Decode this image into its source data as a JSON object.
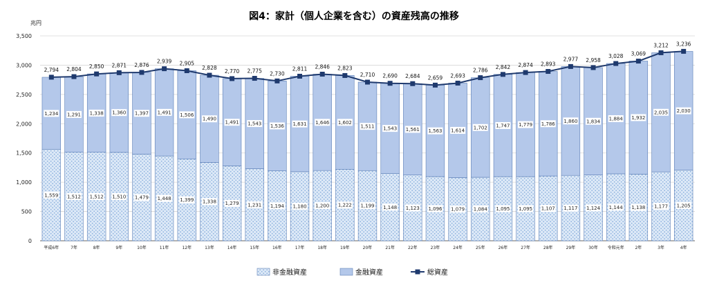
{
  "chart_data": {
    "type": "bar",
    "title": "図4：家計（個人企業を含む）の資産残高の推移",
    "ylabel": "兆円",
    "ylim": [
      0,
      3500
    ],
    "yticks": [
      0,
      500,
      1000,
      1500,
      2000,
      2500,
      3000,
      3500
    ],
    "ytick_labels": [
      "0",
      "500",
      "1,000",
      "1,500",
      "2,000",
      "2,500",
      "3,000",
      "3,500"
    ],
    "grid": true,
    "legend_position": "bottom",
    "stacked": true,
    "categories": [
      "平成6年",
      "7年",
      "8年",
      "9年",
      "10年",
      "11年",
      "12年",
      "13年",
      "14年",
      "15年",
      "16年",
      "17年",
      "18年",
      "19年",
      "20年",
      "21年",
      "22年",
      "23年",
      "24年",
      "25年",
      "26年",
      "27年",
      "28年",
      "29年",
      "30年",
      "令和元年",
      "2年",
      "3年",
      "4年"
    ],
    "series": [
      {
        "name": "非金融資産",
        "color": "#dbe8f6",
        "pattern_color": "#8fb3de",
        "values": [
          1559,
          1512,
          1512,
          1510,
          1479,
          1448,
          1399,
          1338,
          1279,
          1231,
          1194,
          1180,
          1200,
          1222,
          1199,
          1148,
          1123,
          1096,
          1079,
          1084,
          1095,
          1095,
          1107,
          1117,
          1124,
          1144,
          1138,
          1177,
          1205
        ],
        "labels": [
          "1,559",
          "1,512",
          "1,512",
          "1,510",
          "1,479",
          "1,448",
          "1,399",
          "1,338",
          "1,279",
          "1,231",
          "1,194",
          "1,180",
          "1,200",
          "1,222",
          "1,199",
          "1,148",
          "1,123",
          "1,096",
          "1,079",
          "1,084",
          "1,095",
          "1,095",
          "1,107",
          "1,117",
          "1,124",
          "1,144",
          "1,138",
          "1,177",
          "1,205"
        ]
      },
      {
        "name": "金融資産",
        "color": "#b4c8ea",
        "values": [
          1234,
          1291,
          1338,
          1360,
          1397,
          1491,
          1506,
          1490,
          1491,
          1543,
          1536,
          1631,
          1646,
          1602,
          1511,
          1543,
          1561,
          1563,
          1614,
          1702,
          1747,
          1779,
          1786,
          1860,
          1834,
          1884,
          1932,
          2035,
          2030
        ],
        "labels": [
          "1,234",
          "1,291",
          "1,338",
          "1,360",
          "1,397",
          "1,491",
          "1,506",
          "1,490",
          "1,491",
          "1,543",
          "1,536",
          "1,631",
          "1,646",
          "1,602",
          "1,511",
          "1,543",
          "1,561",
          "1,563",
          "1,614",
          "1,702",
          "1,747",
          "1,779",
          "1,786",
          "1,860",
          "1,834",
          "1,884",
          "1,932",
          "2,035",
          "2,030"
        ]
      },
      {
        "name": "総資産",
        "type": "line",
        "color": "#1f3a6e",
        "values": [
          2794,
          2804,
          2850,
          2871,
          2876,
          2939,
          2905,
          2828,
          2770,
          2775,
          2730,
          2811,
          2846,
          2823,
          2710,
          2690,
          2684,
          2659,
          2693,
          2786,
          2842,
          2874,
          2893,
          2977,
          2958,
          3028,
          3069,
          3212,
          3236
        ],
        "labels": [
          "2,794",
          "2,804",
          "2,850",
          "2,871",
          "2,876",
          "2,939",
          "2,905",
          "2,828",
          "2,770",
          "2,775",
          "2,730",
          "2,811",
          "2,846",
          "2,823",
          "2,710",
          "2,690",
          "2,684",
          "2,659",
          "2,693",
          "2,786",
          "2,842",
          "2,874",
          "2,893",
          "2,977",
          "2,958",
          "3,028",
          "3,069",
          "3,212",
          "3,236"
        ]
      }
    ]
  }
}
